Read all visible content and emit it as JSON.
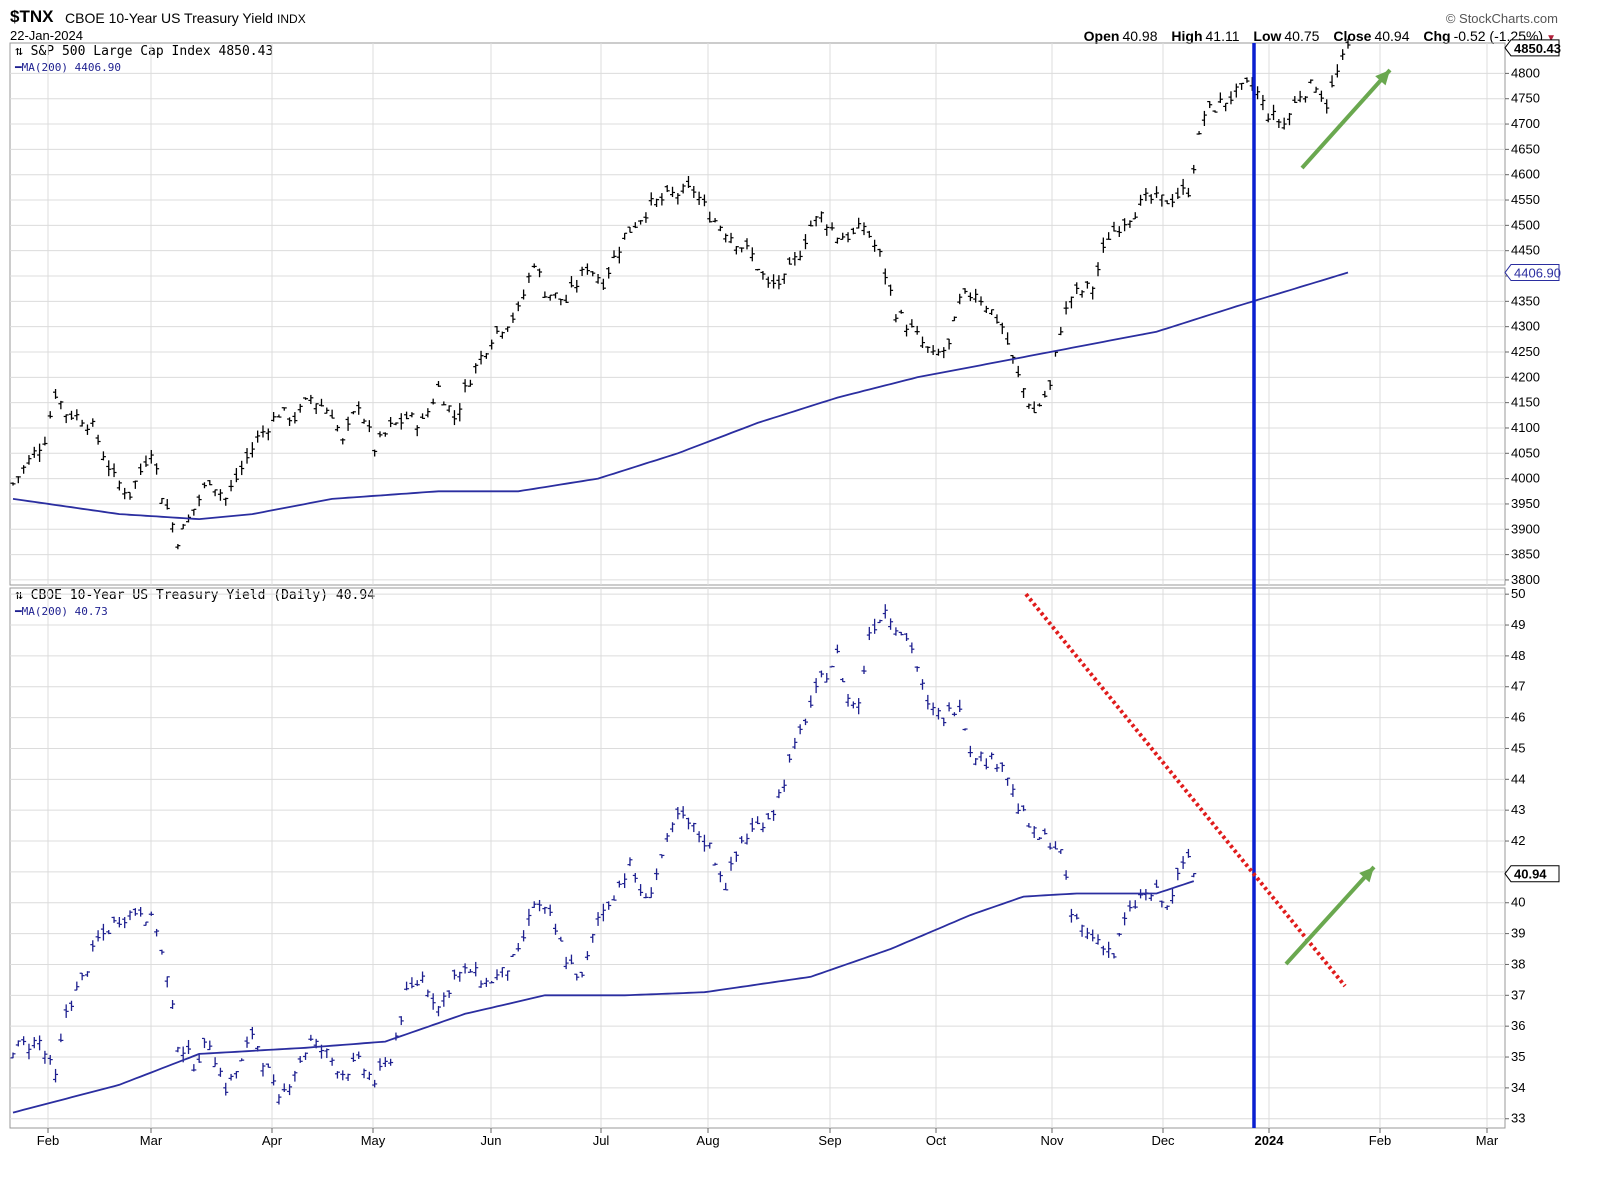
{
  "header": {
    "ticker": "$TNX",
    "name": "CBOE 10-Year US Treasury Yield",
    "exchange": "INDX",
    "date": "22-Jan-2024",
    "source": "© StockCharts.com",
    "open_label": "Open",
    "open": "40.98",
    "high_label": "High",
    "high": "41.11",
    "low_label": "Low",
    "low": "40.75",
    "close_label": "Close",
    "close": "40.94",
    "chg_label": "Chg",
    "chg": "-0.52 (-1.25%)"
  },
  "colors": {
    "price_bar_top": "#000000",
    "price_bar_bottom": "#1d1f8f",
    "ma_line": "#2b2ea0",
    "vertical_marker": "#0a1fd0",
    "trendline": "#e01c1c",
    "arrow": "#6aa84f",
    "grid": "#dcdcdc"
  },
  "chart_data": [
    {
      "type": "ohlc",
      "title": "S&P 500 Large Cap Index 4850.43",
      "legend": [
        "S&P 500 Large Cap Index 4850.43",
        "MA(200) 4406.90"
      ],
      "last_value_tag": "4850.43",
      "ma_value_tag": "4406.90",
      "ylim": [
        3790,
        4860
      ],
      "y_ticks": [
        3800,
        3850,
        3900,
        3950,
        4000,
        4050,
        4100,
        4150,
        4200,
        4250,
        4300,
        4350,
        4400,
        4450,
        4500,
        4550,
        4600,
        4650,
        4700,
        4750,
        4800
      ],
      "price_path": [
        [
          0,
          3990
        ],
        [
          6,
          4080
        ],
        [
          8,
          4170
        ],
        [
          10,
          4130
        ],
        [
          13,
          4120
        ],
        [
          15,
          4100
        ],
        [
          19,
          4000
        ],
        [
          22,
          3970
        ],
        [
          26,
          4060
        ],
        [
          28,
          3970
        ],
        [
          31,
          3880
        ],
        [
          34,
          3940
        ],
        [
          37,
          4000
        ],
        [
          40,
          3960
        ],
        [
          43,
          4020
        ],
        [
          46,
          4080
        ],
        [
          50,
          4130
        ],
        [
          53,
          4120
        ],
        [
          56,
          4160
        ],
        [
          60,
          4130
        ],
        [
          62,
          4070
        ],
        [
          65,
          4150
        ],
        [
          68,
          4060
        ],
        [
          71,
          4100
        ],
        [
          74,
          4120
        ],
        [
          77,
          4110
        ],
        [
          80,
          4180
        ],
        [
          83,
          4120
        ],
        [
          86,
          4200
        ],
        [
          90,
          4280
        ],
        [
          95,
          4330
        ],
        [
          98,
          4430
        ],
        [
          100,
          4370
        ],
        [
          104,
          4350
        ],
        [
          108,
          4420
        ],
        [
          111,
          4390
        ],
        [
          115,
          4480
        ],
        [
          120,
          4540
        ],
        [
          124,
          4560
        ],
        [
          128,
          4570
        ],
        [
          131,
          4520
        ],
        [
          135,
          4480
        ],
        [
          139,
          4440
        ],
        [
          142,
          4380
        ],
        [
          145,
          4390
        ],
        [
          148,
          4450
        ],
        [
          150,
          4500
        ],
        [
          152,
          4520
        ],
        [
          155,
          4480
        ],
        [
          158,
          4480
        ],
        [
          160,
          4500
        ],
        [
          163,
          4440
        ],
        [
          166,
          4330
        ],
        [
          170,
          4280
        ],
        [
          173,
          4240
        ],
        [
          176,
          4260
        ],
        [
          178,
          4350
        ],
        [
          181,
          4370
        ],
        [
          184,
          4330
        ],
        [
          186,
          4300
        ],
        [
          189,
          4200
        ],
        [
          192,
          4130
        ],
        [
          195,
          4180
        ],
        [
          197,
          4300
        ],
        [
          199,
          4360
        ],
        [
          203,
          4380
        ],
        [
          206,
          4480
        ],
        [
          209,
          4510
        ],
        [
          213,
          4550
        ],
        [
          217,
          4550
        ],
        [
          221,
          4570
        ],
        [
          224,
          4720
        ],
        [
          227,
          4740
        ],
        [
          230,
          4760
        ],
        [
          233,
          4780
        ],
        [
          236,
          4720
        ],
        [
          239,
          4700
        ],
        [
          242,
          4760
        ],
        [
          245,
          4780
        ],
        [
          247,
          4740
        ],
        [
          249,
          4800
        ],
        [
          251,
          4850.43
        ]
      ],
      "ma_path": [
        [
          0,
          3960
        ],
        [
          20,
          3930
        ],
        [
          35,
          3920
        ],
        [
          45,
          3930
        ],
        [
          60,
          3960
        ],
        [
          80,
          3975
        ],
        [
          95,
          3975
        ],
        [
          110,
          4000
        ],
        [
          125,
          4050
        ],
        [
          140,
          4110
        ],
        [
          155,
          4160
        ],
        [
          170,
          4200
        ],
        [
          185,
          4230
        ],
        [
          200,
          4260
        ],
        [
          215,
          4290
        ],
        [
          230,
          4340
        ],
        [
          251,
          4406.9
        ]
      ]
    },
    {
      "type": "ohlc",
      "title": "CBOE 10-Year US Treasury Yield (Daily) 40.94",
      "legend": [
        "CBOE 10-Year US Treasury Yield (Daily) 40.94",
        "MA(200) 40.73"
      ],
      "last_value_tag": "40.94",
      "ylim": [
        32.7,
        50.2
      ],
      "y_ticks": [
        33,
        34,
        35,
        36,
        37,
        38,
        39,
        40,
        41,
        42,
        43,
        44,
        45,
        46,
        47,
        48,
        49,
        50
      ],
      "price_path": [
        [
          0,
          35.3
        ],
        [
          5,
          35.5
        ],
        [
          8,
          34.3
        ],
        [
          10,
          36.5
        ],
        [
          13,
          37.5
        ],
        [
          16,
          38.8
        ],
        [
          20,
          39.5
        ],
        [
          24,
          39.8
        ],
        [
          27,
          39.2
        ],
        [
          29,
          37.5
        ],
        [
          31,
          35.5
        ],
        [
          34,
          34.8
        ],
        [
          37,
          35.5
        ],
        [
          40,
          34.0
        ],
        [
          43,
          34.8
        ],
        [
          45,
          35.8
        ],
        [
          48,
          34.5
        ],
        [
          50,
          33.5
        ],
        [
          53,
          34.6
        ],
        [
          56,
          35.5
        ],
        [
          59,
          35.1
        ],
        [
          62,
          34.5
        ],
        [
          65,
          34.8
        ],
        [
          68,
          34.2
        ],
        [
          71,
          35.0
        ],
        [
          74,
          37.0
        ],
        [
          77,
          37.6
        ],
        [
          80,
          36.6
        ],
        [
          83,
          37.6
        ],
        [
          86,
          37.8
        ],
        [
          89,
          37.4
        ],
        [
          92,
          37.7
        ],
        [
          95,
          38.3
        ],
        [
          98,
          40.0
        ],
        [
          101,
          39.5
        ],
        [
          104,
          38.2
        ],
        [
          107,
          37.5
        ],
        [
          110,
          39.5
        ],
        [
          113,
          40.3
        ],
        [
          116,
          41.2
        ],
        [
          119,
          40.0
        ],
        [
          122,
          41.5
        ],
        [
          125,
          42.8
        ],
        [
          128,
          42.4
        ],
        [
          131,
          41.8
        ],
        [
          134,
          40.6
        ],
        [
          137,
          42.0
        ],
        [
          140,
          42.5
        ],
        [
          143,
          43.0
        ],
        [
          146,
          44.5
        ],
        [
          149,
          46.0
        ],
        [
          152,
          47.2
        ],
        [
          155,
          48.0
        ],
        [
          157,
          46.6
        ],
        [
          159,
          46.4
        ],
        [
          161,
          48.8
        ],
        [
          164,
          49.5
        ],
        [
          167,
          48.8
        ],
        [
          169,
          48.3
        ],
        [
          172,
          46.3
        ],
        [
          175,
          46.0
        ],
        [
          178,
          46.5
        ],
        [
          180,
          45.0
        ],
        [
          183,
          44.6
        ],
        [
          186,
          44.6
        ],
        [
          189,
          43.1
        ],
        [
          192,
          42.2
        ],
        [
          195,
          42.0
        ],
        [
          197,
          41.6
        ],
        [
          199,
          39.6
        ],
        [
          202,
          39.0
        ],
        [
          205,
          38.7
        ],
        [
          207,
          38.3
        ],
        [
          209,
          39.4
        ],
        [
          212,
          40.2
        ],
        [
          215,
          40.3
        ],
        [
          217,
          39.8
        ],
        [
          219,
          40.8
        ],
        [
          221,
          41.5
        ],
        [
          222,
          40.94
        ]
      ],
      "ma_path": [
        [
          0,
          33.2
        ],
        [
          20,
          34.1
        ],
        [
          35,
          35.1
        ],
        [
          55,
          35.3
        ],
        [
          70,
          35.5
        ],
        [
          85,
          36.4
        ],
        [
          100,
          37.0
        ],
        [
          115,
          37.0
        ],
        [
          130,
          37.1
        ],
        [
          150,
          37.6
        ],
        [
          165,
          38.5
        ],
        [
          180,
          39.6
        ],
        [
          190,
          40.2
        ],
        [
          200,
          40.3
        ],
        [
          215,
          40.3
        ],
        [
          222,
          40.7
        ]
      ]
    }
  ],
  "time_axis": {
    "labels": [
      "Feb",
      "Mar",
      "Apr",
      "May",
      "Jun",
      "Jul",
      "Aug",
      "Sep",
      "Oct",
      "Nov",
      "Dec",
      "2024",
      "Feb",
      "Mar"
    ],
    "bold_label": "2024"
  },
  "annotations": {
    "vertical_line_label": "2024",
    "trendline": "falling dotted red trendline on yield panel from Oct high to late Jan",
    "arrows": [
      "green up arrow on S&P 500 panel",
      "green up arrow on yield panel"
    ]
  }
}
